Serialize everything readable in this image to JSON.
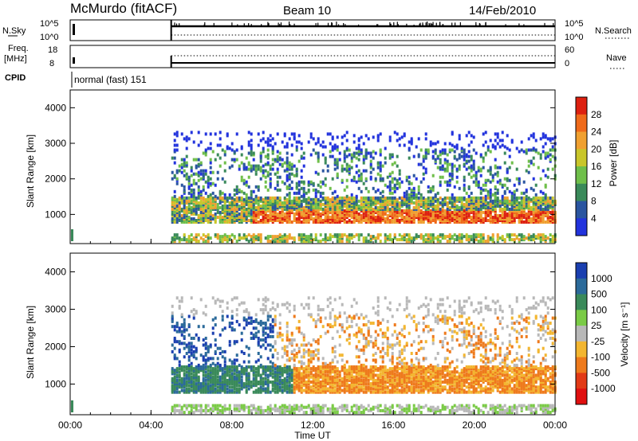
{
  "header": {
    "station": "McMurdo (fitACF)",
    "beam": "Beam 10",
    "date": "14/Feb/2010"
  },
  "params": {
    "nsky_label": "N.Sky",
    "nsky_ticks": [
      "10^5",
      "10^0"
    ],
    "nsearch_label": "N.Search",
    "nsearch_ticks": [
      "10^5",
      "10^0"
    ],
    "freq_label_1": "Freq.",
    "freq_label_2": "[MHz]",
    "freq_ticks": [
      "18",
      "8"
    ],
    "nave_label": "Nave",
    "nave_ticks": [
      "60",
      "0"
    ],
    "cpid_label": "CPID",
    "cpid_value": "normal (fast) 151"
  },
  "colors": {
    "power": [
      "#2233dd",
      "#2a55a0",
      "#3a8a5a",
      "#6fbf4a",
      "#c9c62a",
      "#f0a030",
      "#ef6a1a",
      "#dd2010"
    ],
    "velocity": [
      "#1a3fb0",
      "#2b6a9a",
      "#3a8a5a",
      "#7acb46",
      "#b8b8b8",
      "#f3b630",
      "#ee7a1c",
      "#e23a16",
      "#e01010"
    ]
  },
  "chart_data": [
    {
      "type": "heatmap",
      "title": "Power",
      "xlabel": "Time UT",
      "ylabel": "Slant Range [km]",
      "x_range": [
        "00:00",
        "24:00"
      ],
      "x_ticks": [
        "00:00",
        "04:00",
        "08:00",
        "12:00",
        "16:00",
        "20:00",
        "00:00"
      ],
      "ylim": [
        180,
        4500
      ],
      "y_ticks": [
        1000,
        2000,
        3000,
        4000
      ],
      "colorbar": {
        "label": "Power [dB]",
        "ticks": [
          4,
          8,
          12,
          16,
          20,
          24,
          28
        ]
      },
      "data_start_hour": 5,
      "summary": [
        {
          "range_km": [
            800,
            1400
          ],
          "hours": [
            5,
            24
          ],
          "level": "12-28 dB"
        },
        {
          "range_km": [
            1400,
            3300
          ],
          "hours": [
            5,
            24
          ],
          "level": "4-12 dB (sparse)"
        },
        {
          "range_km": [
            180,
            400
          ],
          "hours": [
            5,
            24
          ],
          "level": "8-28 dB"
        }
      ]
    },
    {
      "type": "heatmap",
      "title": "Velocity",
      "xlabel": "Time UT",
      "ylabel": "Slant Range [km]",
      "x_range": [
        "00:00",
        "24:00"
      ],
      "x_ticks": [
        "00:00",
        "04:00",
        "08:00",
        "12:00",
        "16:00",
        "20:00",
        "00:00"
      ],
      "ylim": [
        180,
        4500
      ],
      "y_ticks": [
        1000,
        2000,
        3000,
        4000
      ],
      "colorbar": {
        "label": "Velocity [m s⁻¹]",
        "ticks": [
          1000,
          500,
          100,
          25,
          -25,
          -100,
          -500,
          -1000
        ]
      },
      "data_start_hour": 5,
      "summary": [
        {
          "range_km": [
            800,
            1500
          ],
          "hours": [
            5,
            11
          ],
          "level": "100 to 500 m/s"
        },
        {
          "range_km": [
            600,
            1600
          ],
          "hours": [
            11,
            24
          ],
          "level": "-100 to -500 m/s"
        },
        {
          "range_km": [
            1500,
            3300
          ],
          "hours": [
            5,
            24
          ],
          "level": "-25 to 500 m/s (sparse)"
        }
      ]
    }
  ]
}
